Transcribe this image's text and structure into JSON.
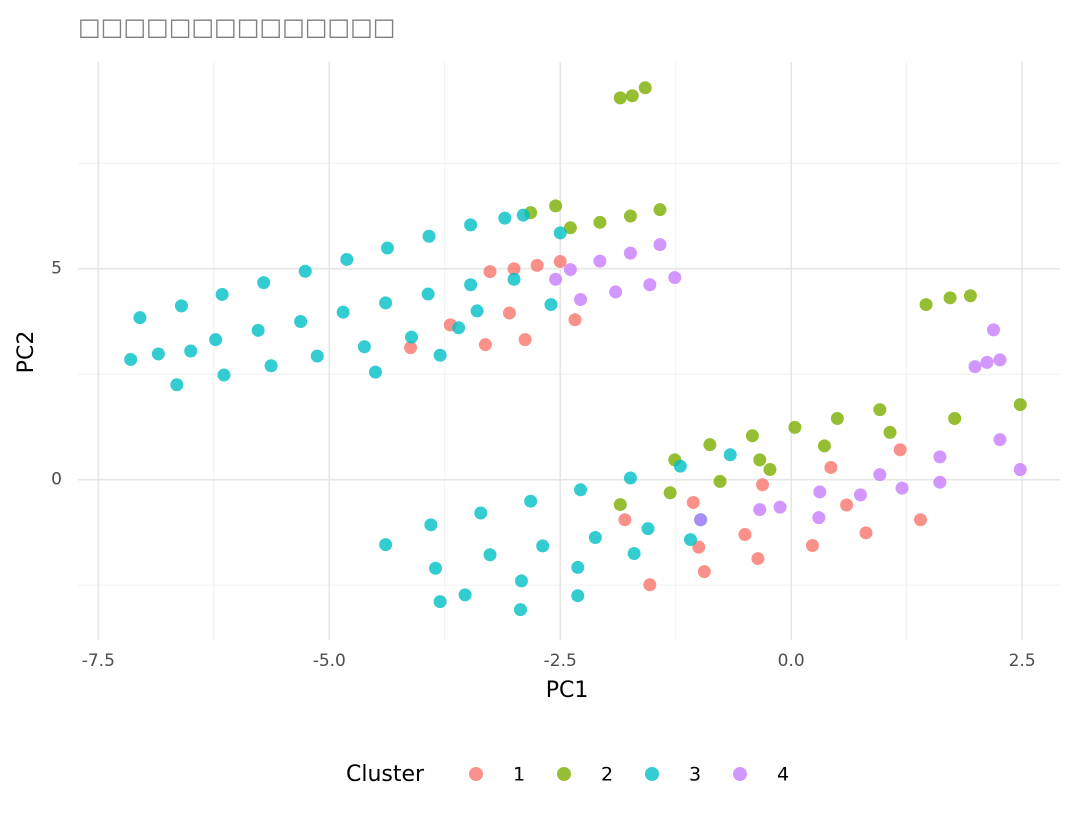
{
  "chart_data": {
    "type": "scatter",
    "title": "□□□□□□□□□□□□□□",
    "x_label": "PC1",
    "y_label": "PC2",
    "legend_title": "Cluster",
    "legend_position": "bottom",
    "xlim": [
      -7.72,
      2.91
    ],
    "ylim": [
      -3.8,
      9.9
    ],
    "xticks": [
      -7.5,
      {
        "value": -5,
        "label": "-5.0"
      },
      -2.5,
      {
        "value": 0,
        "label": "0.0"
      },
      2.5
    ],
    "yticks": [
      0,
      5
    ],
    "grid": true,
    "minor_grid": true,
    "series": [
      {
        "name": "1",
        "color": "#F8766D",
        "x": [
          -3.26,
          -3.0,
          -2.75,
          -2.5,
          -4.12,
          -3.69,
          -3.31,
          -2.88,
          -2.34,
          -3.05,
          -1.53,
          -0.94,
          -0.36,
          0.23,
          0.81,
          1.4,
          -1.8,
          -1.06,
          -0.31,
          0.43,
          1.18,
          -0.5,
          0.6,
          -1.0
        ],
        "y": [
          4.93,
          5.0,
          5.08,
          5.17,
          3.13,
          3.67,
          3.2,
          3.32,
          3.79,
          3.95,
          -2.49,
          -2.18,
          -1.87,
          -1.56,
          -1.26,
          -0.95,
          -0.95,
          -0.54,
          -0.12,
          0.29,
          0.71,
          -1.3,
          -0.6,
          -1.6
        ]
      },
      {
        "name": "2",
        "color": "#7CAE00",
        "x": [
          -1.85,
          -1.72,
          -1.58,
          -2.82,
          -2.55,
          -2.39,
          -2.07,
          -1.74,
          -1.42,
          1.46,
          1.72,
          1.94,
          -0.88,
          -0.42,
          0.04,
          0.5,
          0.96,
          -0.34,
          0.36,
          1.07,
          1.77,
          2.48,
          -1.85,
          -1.31,
          -0.77,
          -0.23,
          -1.26
        ],
        "y": [
          9.05,
          9.1,
          9.29,
          6.33,
          6.49,
          5.97,
          6.1,
          6.25,
          6.4,
          4.15,
          4.31,
          4.36,
          0.83,
          1.04,
          1.24,
          1.45,
          1.66,
          0.47,
          0.8,
          1.12,
          1.45,
          1.78,
          -0.59,
          -0.31,
          -0.04,
          0.24,
          0.47
        ]
      },
      {
        "name": "3",
        "color": "#00BFC4",
        "x": [
          -7.05,
          -6.6,
          -6.16,
          -5.71,
          -5.26,
          -4.81,
          -4.37,
          -3.92,
          -3.47,
          -3.1,
          -2.5,
          -2.9,
          -6.23,
          -5.77,
          -5.31,
          -4.85,
          -4.39,
          -3.93,
          -3.47,
          -3.0,
          -2.6,
          -3.4,
          -6.65,
          -6.14,
          -5.63,
          -5.13,
          -4.62,
          -4.11,
          -3.6,
          -4.5,
          -3.8,
          -7.15,
          -6.85,
          -6.5,
          -3.9,
          -3.36,
          -2.82,
          -2.28,
          -1.74,
          -1.2,
          -0.66,
          -3.26,
          -2.69,
          -2.12,
          -1.55,
          -0.98,
          -3.53,
          -2.92,
          -2.31,
          -1.7,
          -1.09,
          -4.39,
          -2.93,
          -3.8,
          -3.85,
          -2.31
        ],
        "y": [
          3.84,
          4.12,
          4.39,
          4.67,
          4.94,
          5.22,
          5.49,
          5.77,
          6.04,
          6.2,
          5.85,
          6.27,
          3.32,
          3.54,
          3.75,
          3.97,
          4.19,
          4.4,
          4.62,
          4.75,
          4.15,
          4.0,
          2.25,
          2.48,
          2.7,
          2.93,
          3.15,
          3.38,
          3.6,
          2.55,
          2.95,
          2.85,
          2.98,
          3.05,
          -1.07,
          -0.79,
          -0.51,
          -0.24,
          0.04,
          0.32,
          0.59,
          -1.78,
          -1.57,
          -1.37,
          -1.16,
          -0.95,
          -2.73,
          -2.4,
          -2.08,
          -1.75,
          -1.42,
          -1.54,
          -3.08,
          -2.89,
          -2.1,
          -2.75
        ]
      },
      {
        "name": "4",
        "color": "#C77CFF",
        "x": [
          -2.39,
          -2.07,
          -1.74,
          -1.42,
          -2.28,
          -1.9,
          -1.53,
          -1.26,
          -2.55,
          2.19,
          1.99,
          2.26,
          2.12,
          -0.98,
          -0.12,
          0.75,
          1.61,
          2.48,
          -0.34,
          0.31,
          0.96,
          1.61,
          2.26,
          1.2,
          0.3
        ],
        "y": [
          4.98,
          5.18,
          5.37,
          5.57,
          4.27,
          4.45,
          4.62,
          4.79,
          4.75,
          3.55,
          2.68,
          2.84,
          2.78,
          -0.95,
          -0.65,
          -0.36,
          -0.06,
          0.24,
          -0.71,
          -0.29,
          0.12,
          0.54,
          0.95,
          -0.2,
          -0.9
        ]
      }
    ]
  }
}
